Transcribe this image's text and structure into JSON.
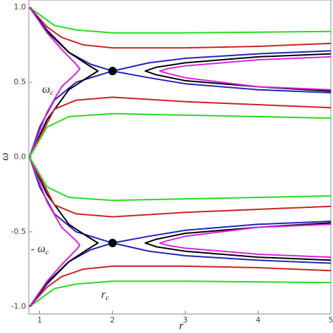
{
  "chart_data": {
    "type": "line",
    "x_label": "r",
    "y_label": "ω",
    "annotations": [
      {
        "text": "ω",
        "sub": "c"
      },
      {
        "text": "- ω",
        "sub": "c"
      },
      {
        "text": "r",
        "sub": "c"
      }
    ],
    "xlim": [
      0.85,
      5
    ],
    "ylim": [
      -1.05,
      1.05
    ],
    "xticks": [
      1,
      2,
      3,
      4,
      5
    ],
    "yticks": [
      {
        "value": 1,
        "label": "1.0"
      },
      {
        "value": 0.5,
        "label": "0.5"
      },
      {
        "value": 0,
        "label": "0.0"
      },
      {
        "value": -0.5,
        "label": "-0.5"
      },
      {
        "value": -1,
        "label": "-1.0"
      }
    ],
    "series": [
      {
        "color": "#22dd22",
        "x": [
          0.86,
          1.2,
          1.5,
          2,
          3,
          4,
          5
        ],
        "values": [
          1.0,
          0.88,
          0.85,
          0.83,
          0.83,
          0.835,
          0.84
        ]
      },
      {
        "color": "#cc2222",
        "x": [
          0.86,
          1.1,
          1.3,
          1.6,
          2,
          3,
          4,
          5
        ],
        "values": [
          1.0,
          0.87,
          0.8,
          0.75,
          0.73,
          0.73,
          0.74,
          0.76
        ]
      },
      {
        "color": "#2222bb",
        "x": [
          0.86,
          1.1,
          1.4,
          1.7,
          2,
          2.5,
          3,
          4,
          5
        ],
        "values": [
          1.0,
          0.85,
          0.7,
          0.62,
          0.575,
          0.53,
          0.49,
          0.45,
          0.43
        ]
      },
      {
        "color": "#2222bb",
        "x": [
          0.86,
          1.0,
          1.2,
          1.5,
          2,
          2.5,
          3,
          4,
          5
        ],
        "values": [
          0,
          0.2,
          0.38,
          0.5,
          0.575,
          0.63,
          0.66,
          0.69,
          0.71
        ]
      },
      {
        "color": "#000000",
        "x": [
          0.86,
          1.1,
          1.4,
          1.65,
          1.8,
          1.65,
          1.4,
          1.1,
          0.86
        ],
        "values": [
          1.0,
          0.84,
          0.7,
          0.62,
          0.575,
          0.53,
          0.45,
          0.25,
          0
        ]
      },
      {
        "color": "#dd22dd",
        "x": [
          0.86,
          1.1,
          1.3,
          1.5,
          1.55,
          1.5,
          1.3,
          1.1,
          0.86
        ],
        "values": [
          1.0,
          0.83,
          0.72,
          0.62,
          0.59,
          0.56,
          0.47,
          0.3,
          0
        ]
      },
      {
        "color": "#000000",
        "x": [
          5,
          4,
          3,
          2.6,
          2.45,
          2.6,
          3,
          4,
          5
        ],
        "values": [
          0.69,
          0.67,
          0.63,
          0.6,
          0.575,
          0.55,
          0.51,
          0.47,
          0.44
        ]
      },
      {
        "color": "#dd22dd",
        "x": [
          5,
          4,
          3,
          2.75,
          2.65,
          2.75,
          3,
          4,
          5
        ],
        "values": [
          0.67,
          0.65,
          0.61,
          0.59,
          0.575,
          0.56,
          0.53,
          0.47,
          0.45
        ]
      },
      {
        "color": "#cc2222",
        "x": [
          0.86,
          1.2,
          1.5,
          2,
          3,
          4,
          5
        ],
        "values": [
          0,
          0.32,
          0.38,
          0.4,
          0.37,
          0.35,
          0.33
        ]
      },
      {
        "color": "#22dd22",
        "x": [
          0.86,
          1.1,
          1.4,
          2,
          3,
          4,
          5
        ],
        "values": [
          0,
          0.2,
          0.27,
          0.29,
          0.28,
          0.27,
          0.26
        ]
      },
      {
        "color": "#22dd22",
        "x": [
          0.86,
          1.2,
          1.5,
          2,
          3,
          4,
          5
        ],
        "values": [
          -1.0,
          -0.88,
          -0.85,
          -0.83,
          -0.83,
          -0.835,
          -0.84
        ]
      },
      {
        "color": "#cc2222",
        "x": [
          0.86,
          1.1,
          1.3,
          1.6,
          2,
          3,
          4,
          5
        ],
        "values": [
          -1.0,
          -0.87,
          -0.8,
          -0.75,
          -0.73,
          -0.73,
          -0.74,
          -0.76
        ]
      },
      {
        "color": "#2222bb",
        "x": [
          0.86,
          1.1,
          1.4,
          1.7,
          2,
          2.5,
          3,
          4,
          5
        ],
        "values": [
          -1.0,
          -0.85,
          -0.7,
          -0.62,
          -0.575,
          -0.53,
          -0.49,
          -0.45,
          -0.43
        ]
      },
      {
        "color": "#2222bb",
        "x": [
          0.86,
          1.0,
          1.2,
          1.5,
          2,
          2.5,
          3,
          4,
          5
        ],
        "values": [
          0,
          -0.2,
          -0.38,
          -0.5,
          -0.575,
          -0.63,
          -0.66,
          -0.69,
          -0.71
        ]
      },
      {
        "color": "#000000",
        "x": [
          0.86,
          1.1,
          1.4,
          1.65,
          1.8,
          1.65,
          1.4,
          1.1,
          0.86
        ],
        "values": [
          -1.0,
          -0.84,
          -0.7,
          -0.62,
          -0.575,
          -0.53,
          -0.45,
          -0.25,
          0
        ]
      },
      {
        "color": "#dd22dd",
        "x": [
          0.86,
          1.1,
          1.3,
          1.5,
          1.55,
          1.5,
          1.3,
          1.1,
          0.86
        ],
        "values": [
          -1.0,
          -0.83,
          -0.72,
          -0.62,
          -0.59,
          -0.56,
          -0.47,
          -0.3,
          0
        ]
      },
      {
        "color": "#000000",
        "x": [
          5,
          4,
          3,
          2.6,
          2.45,
          2.6,
          3,
          4,
          5
        ],
        "values": [
          -0.69,
          -0.67,
          -0.63,
          -0.6,
          -0.575,
          -0.55,
          -0.51,
          -0.47,
          -0.44
        ]
      },
      {
        "color": "#dd22dd",
        "x": [
          5,
          4,
          3,
          2.75,
          2.65,
          2.75,
          3,
          4,
          5
        ],
        "values": [
          -0.67,
          -0.65,
          -0.61,
          -0.59,
          -0.575,
          -0.56,
          -0.53,
          -0.47,
          -0.45
        ]
      },
      {
        "color": "#cc2222",
        "x": [
          0.86,
          1.2,
          1.5,
          2,
          3,
          4,
          5
        ],
        "values": [
          0,
          -0.32,
          -0.38,
          -0.4,
          -0.37,
          -0.35,
          -0.33
        ]
      },
      {
        "color": "#22dd22",
        "x": [
          0.86,
          1.1,
          1.4,
          2,
          3,
          4,
          5
        ],
        "values": [
          0,
          -0.2,
          -0.27,
          -0.29,
          -0.28,
          -0.27,
          -0.26
        ]
      }
    ],
    "points": {
      "color": "#000000",
      "x": [
        2,
        2
      ],
      "values": [
        0.575,
        -0.575
      ]
    }
  }
}
